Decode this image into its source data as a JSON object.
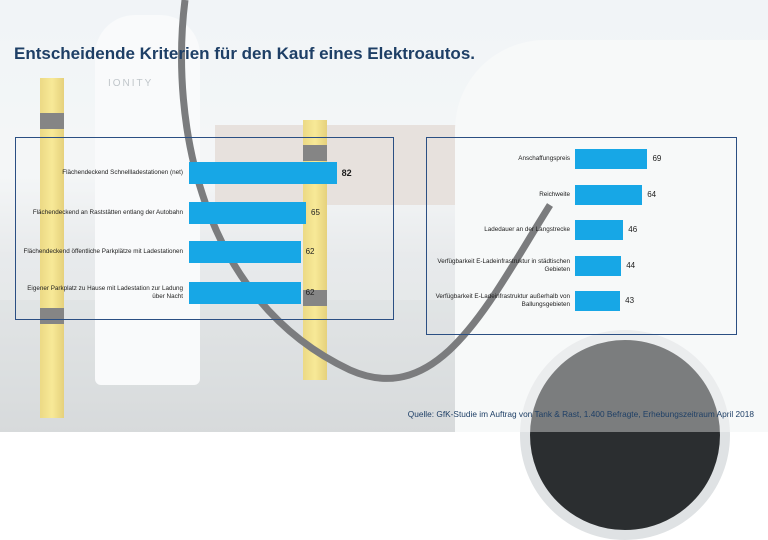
{
  "slide": {
    "title": "Entscheidende Kriterien für den Kauf eines Elektroautos.",
    "source": "Quelle: GfK-Studie im Auftrag von Tank & Rast, 1.400 Befragte, Erhebungszeitraum April 2018"
  },
  "background": {
    "station_logo": "IONITY"
  },
  "colors": {
    "bar": "#17a7e6",
    "title": "#1e3f66",
    "frame": "#2b4f83"
  },
  "chart_data": [
    {
      "type": "bar",
      "orientation": "horizontal",
      "categories": [
        "Flächendeckend Schnellladestationen (net)",
        "Flächendeckend an Raststätten entlang der Autobahn",
        "Flächendeckend öffentliche Parkplätze mit Ladestationen",
        "Eigener Parkplatz zu Hause mit Ladestation zur Ladung über Nacht"
      ],
      "values": [
        82,
        65,
        62,
        62
      ],
      "value_labels": [
        "82",
        "65",
        "62",
        "62"
      ],
      "bold_values": [
        true,
        false,
        false,
        false
      ],
      "xlim": [
        0,
        100
      ],
      "grid": false
    },
    {
      "type": "bar",
      "orientation": "horizontal",
      "categories": [
        "Anschaffungspreis",
        "Reichweite",
        "Ladedauer an der Langstrecke",
        "Verfügbarkeit E-Ladeinfrastruktur in städtischen Gebieten",
        "Verfügbarkeit E-Ladeinfrastruktur außerhalb von Ballungsgebieten"
      ],
      "values": [
        69,
        64,
        46,
        44,
        43
      ],
      "value_labels": [
        "69",
        "64",
        "46",
        "44",
        "43"
      ],
      "xlim": [
        0,
        100
      ],
      "grid": false
    }
  ]
}
